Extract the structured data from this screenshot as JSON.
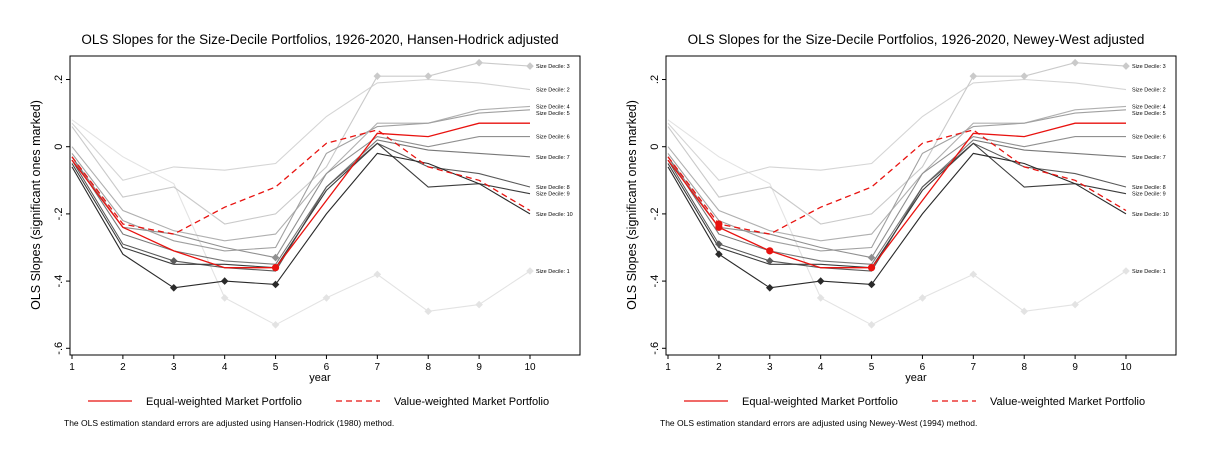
{
  "chart_data": [
    {
      "type": "line",
      "title": "OLS Slopes for the Size-Decile Portfolios, 1926-2020, Hansen-Hodrick adjusted",
      "xlabel": "year",
      "ylabel": "OLS Slopes (significant ones marked)",
      "x": [
        1,
        2,
        3,
        4,
        5,
        6,
        7,
        8,
        9,
        10
      ],
      "x_ticks": [
        "1",
        "2",
        "3",
        "4",
        "5",
        "6",
        "7",
        "8",
        "9",
        "10"
      ],
      "y_ticks": [
        {
          "value": 0.2,
          "label": ".2"
        },
        {
          "value": 0,
          "label": "0"
        },
        {
          "value": -0.2,
          "label": "-.2"
        },
        {
          "value": -0.4,
          "label": "-.4"
        },
        {
          "value": -0.6,
          "label": "-.6"
        }
      ],
      "ylim": [
        -0.62,
        0.27
      ],
      "grid": false,
      "series": [
        {
          "name": "Size Decile: 1",
          "color": "#e3e3e3",
          "values": [
            0.08,
            -0.03,
            -0.11,
            -0.45,
            -0.53,
            -0.45,
            -0.38,
            -0.49,
            -0.47,
            -0.37
          ],
          "significant": [
            false,
            false,
            false,
            true,
            true,
            true,
            true,
            true,
            true,
            true
          ]
        },
        {
          "name": "Size Decile: 2",
          "color": "#d5d5d5",
          "values": [
            0.07,
            -0.1,
            -0.06,
            -0.07,
            -0.05,
            0.09,
            0.19,
            0.2,
            0.19,
            0.17
          ],
          "significant": [
            false,
            false,
            false,
            false,
            false,
            false,
            false,
            false,
            false,
            false
          ]
        },
        {
          "name": "Size Decile: 3",
          "color": "#cacaca",
          "values": [
            0.06,
            -0.15,
            -0.12,
            -0.23,
            -0.2,
            -0.06,
            0.21,
            0.21,
            0.25,
            0.24
          ],
          "significant": [
            false,
            false,
            false,
            false,
            false,
            false,
            true,
            true,
            true,
            true
          ]
        },
        {
          "name": "Size Decile: 4",
          "color": "#b0b0b0",
          "values": [
            0.0,
            -0.19,
            -0.25,
            -0.28,
            -0.26,
            -0.08,
            0.07,
            0.07,
            0.11,
            0.12
          ],
          "significant": [
            false,
            false,
            false,
            false,
            false,
            false,
            false,
            false,
            false,
            false
          ]
        },
        {
          "name": "Size Decile: 5",
          "color": "#a0a0a0",
          "values": [
            -0.02,
            -0.22,
            -0.28,
            -0.31,
            -0.3,
            -0.02,
            0.06,
            0.07,
            0.1,
            0.11
          ],
          "significant": [
            false,
            false,
            false,
            false,
            false,
            false,
            false,
            false,
            false,
            false
          ]
        },
        {
          "name": "Size Decile: 6",
          "color": "#909090",
          "values": [
            -0.03,
            -0.24,
            -0.26,
            -0.3,
            -0.33,
            -0.08,
            0.03,
            0.0,
            0.03,
            0.03
          ],
          "significant": [
            false,
            false,
            false,
            false,
            true,
            false,
            false,
            false,
            false,
            false
          ]
        },
        {
          "name": "Size Decile: 7",
          "color": "#787878",
          "values": [
            -0.03,
            -0.26,
            -0.31,
            -0.34,
            -0.35,
            -0.12,
            0.02,
            -0.01,
            -0.02,
            -0.03
          ],
          "significant": [
            false,
            false,
            false,
            false,
            false,
            false,
            false,
            false,
            false,
            false
          ]
        },
        {
          "name": "Size Decile: 8",
          "color": "#5a5a5a",
          "values": [
            -0.04,
            -0.29,
            -0.34,
            -0.36,
            -0.37,
            -0.12,
            0.01,
            -0.06,
            -0.08,
            -0.12
          ],
          "significant": [
            false,
            false,
            true,
            false,
            false,
            false,
            false,
            false,
            false,
            false
          ]
        },
        {
          "name": "Size Decile: 9",
          "color": "#3c3c3c",
          "values": [
            -0.05,
            -0.3,
            -0.35,
            -0.35,
            -0.36,
            -0.13,
            0.01,
            -0.12,
            -0.11,
            -0.14
          ],
          "significant": [
            false,
            false,
            false,
            false,
            false,
            false,
            false,
            false,
            false,
            false
          ]
        },
        {
          "name": "Size Decile: 10",
          "color": "#2a2a2a",
          "values": [
            -0.06,
            -0.32,
            -0.42,
            -0.4,
            -0.41,
            -0.2,
            -0.02,
            -0.05,
            -0.11,
            -0.2
          ],
          "significant": [
            false,
            false,
            true,
            true,
            true,
            false,
            false,
            false,
            false,
            false
          ]
        },
        {
          "name": "Equal-weighted Market Portfolio",
          "color": "#e8120f",
          "dashed": false,
          "values": [
            -0.04,
            -0.24,
            -0.31,
            -0.36,
            -0.36,
            -0.16,
            0.04,
            0.03,
            0.07,
            0.07
          ],
          "significant": [
            false,
            false,
            false,
            false,
            true,
            false,
            false,
            false,
            false,
            false
          ]
        },
        {
          "name": "Value-weighted Market Portfolio",
          "color": "#e8120f",
          "dashed": true,
          "values": [
            -0.03,
            -0.23,
            -0.26,
            -0.18,
            -0.12,
            0.01,
            0.05,
            -0.06,
            -0.1,
            -0.19
          ],
          "significant": [
            false,
            false,
            false,
            false,
            false,
            false,
            false,
            false,
            false,
            false
          ]
        }
      ],
      "legend": {
        "position": "bottom",
        "items": [
          "Equal-weighted Market Portfolio",
          "Value-weighted Market Portfolio"
        ]
      },
      "note": "The OLS estimation standard errors are adjusted using Hansen-Hodrick (1980) method."
    },
    {
      "type": "line",
      "title": "OLS Slopes for the Size-Decile Portfolios, 1926-2020, Newey-West adjusted",
      "xlabel": "year",
      "ylabel": "OLS Slopes (significant ones marked)",
      "x": [
        1,
        2,
        3,
        4,
        5,
        6,
        7,
        8,
        9,
        10
      ],
      "x_ticks": [
        "1",
        "2",
        "3",
        "4",
        "5",
        "6",
        "7",
        "8",
        "9",
        "10"
      ],
      "y_ticks": [
        {
          "value": 0.2,
          "label": ".2"
        },
        {
          "value": 0,
          "label": "0"
        },
        {
          "value": -0.2,
          "label": "-.2"
        },
        {
          "value": -0.4,
          "label": "-.4"
        },
        {
          "value": -0.6,
          "label": "-.6"
        }
      ],
      "ylim": [
        -0.62,
        0.27
      ],
      "grid": false,
      "series": [
        {
          "name": "Size Decile: 1",
          "color": "#e3e3e3",
          "values": [
            0.08,
            -0.03,
            -0.11,
            -0.45,
            -0.53,
            -0.45,
            -0.38,
            -0.49,
            -0.47,
            -0.37
          ],
          "significant": [
            false,
            false,
            false,
            true,
            true,
            true,
            true,
            true,
            true,
            true
          ]
        },
        {
          "name": "Size Decile: 2",
          "color": "#d5d5d5",
          "values": [
            0.07,
            -0.1,
            -0.06,
            -0.07,
            -0.05,
            0.09,
            0.19,
            0.2,
            0.19,
            0.17
          ],
          "significant": [
            false,
            false,
            false,
            false,
            false,
            false,
            false,
            false,
            false,
            false
          ]
        },
        {
          "name": "Size Decile: 3",
          "color": "#cacaca",
          "values": [
            0.06,
            -0.15,
            -0.12,
            -0.23,
            -0.2,
            -0.06,
            0.21,
            0.21,
            0.25,
            0.24
          ],
          "significant": [
            false,
            false,
            false,
            false,
            false,
            false,
            true,
            true,
            true,
            true
          ]
        },
        {
          "name": "Size Decile: 4",
          "color": "#b0b0b0",
          "values": [
            0.0,
            -0.19,
            -0.25,
            -0.28,
            -0.26,
            -0.08,
            0.07,
            0.07,
            0.11,
            0.12
          ],
          "significant": [
            false,
            false,
            false,
            false,
            false,
            false,
            false,
            false,
            false,
            false
          ]
        },
        {
          "name": "Size Decile: 5",
          "color": "#a0a0a0",
          "values": [
            -0.02,
            -0.22,
            -0.28,
            -0.31,
            -0.3,
            -0.02,
            0.06,
            0.07,
            0.1,
            0.11
          ],
          "significant": [
            false,
            false,
            false,
            false,
            false,
            false,
            false,
            false,
            false,
            false
          ]
        },
        {
          "name": "Size Decile: 6",
          "color": "#909090",
          "values": [
            -0.03,
            -0.24,
            -0.26,
            -0.3,
            -0.33,
            -0.08,
            0.03,
            0.0,
            0.03,
            0.03
          ],
          "significant": [
            false,
            false,
            false,
            false,
            true,
            false,
            false,
            false,
            false,
            false
          ]
        },
        {
          "name": "Size Decile: 7",
          "color": "#787878",
          "values": [
            -0.03,
            -0.26,
            -0.31,
            -0.34,
            -0.35,
            -0.12,
            0.02,
            -0.01,
            -0.02,
            -0.03
          ],
          "significant": [
            false,
            false,
            false,
            false,
            false,
            false,
            false,
            false,
            false,
            false
          ]
        },
        {
          "name": "Size Decile: 8",
          "color": "#5a5a5a",
          "values": [
            -0.04,
            -0.29,
            -0.34,
            -0.36,
            -0.37,
            -0.12,
            0.01,
            -0.06,
            -0.08,
            -0.12
          ],
          "significant": [
            false,
            true,
            true,
            false,
            false,
            false,
            false,
            false,
            false,
            false
          ]
        },
        {
          "name": "Size Decile: 9",
          "color": "#3c3c3c",
          "values": [
            -0.05,
            -0.3,
            -0.35,
            -0.35,
            -0.36,
            -0.13,
            0.01,
            -0.12,
            -0.11,
            -0.14
          ],
          "significant": [
            false,
            false,
            false,
            false,
            false,
            false,
            false,
            false,
            false,
            false
          ]
        },
        {
          "name": "Size Decile: 10",
          "color": "#2a2a2a",
          "values": [
            -0.06,
            -0.32,
            -0.42,
            -0.4,
            -0.41,
            -0.2,
            -0.02,
            -0.05,
            -0.11,
            -0.2
          ],
          "significant": [
            false,
            true,
            true,
            true,
            true,
            false,
            false,
            false,
            false,
            false
          ]
        },
        {
          "name": "Equal-weighted Market Portfolio",
          "color": "#e8120f",
          "dashed": false,
          "values": [
            -0.04,
            -0.24,
            -0.31,
            -0.36,
            -0.36,
            -0.16,
            0.04,
            0.03,
            0.07,
            0.07
          ],
          "significant": [
            false,
            true,
            true,
            false,
            true,
            false,
            false,
            false,
            false,
            false
          ]
        },
        {
          "name": "Value-weighted Market Portfolio",
          "color": "#e8120f",
          "dashed": true,
          "values": [
            -0.03,
            -0.23,
            -0.26,
            -0.18,
            -0.12,
            0.01,
            0.05,
            -0.06,
            -0.1,
            -0.19
          ],
          "significant": [
            false,
            true,
            false,
            false,
            false,
            false,
            false,
            false,
            false,
            false
          ]
        }
      ],
      "legend": {
        "position": "bottom",
        "items": [
          "Equal-weighted Market Portfolio",
          "Value-weighted Market Portfolio"
        ]
      },
      "note": "The OLS estimation standard errors are adjusted using Newey-West (1994) method."
    }
  ]
}
